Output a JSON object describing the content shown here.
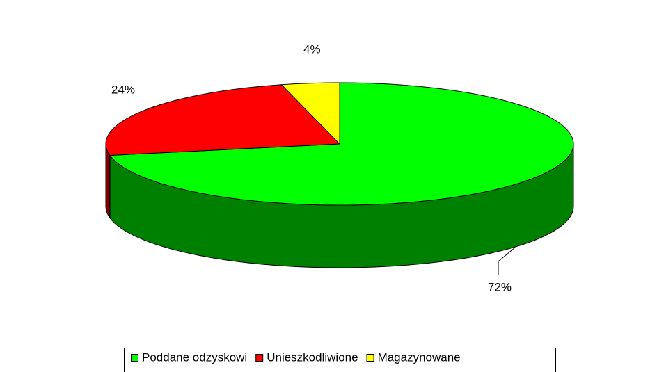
{
  "chart_data": {
    "type": "pie3d",
    "categories": [
      "Poddane odzyskowi",
      "Unieszkodliwione",
      "Magazynowane"
    ],
    "values": [
      72,
      24,
      4
    ],
    "value_labels": [
      "72%",
      "24%",
      "4%"
    ],
    "colors": [
      "#00ff00",
      "#ff0000",
      "#ffff00"
    ],
    "side_colors": [
      "#008000",
      "#800000",
      "#808000"
    ],
    "legend": "bottom"
  }
}
